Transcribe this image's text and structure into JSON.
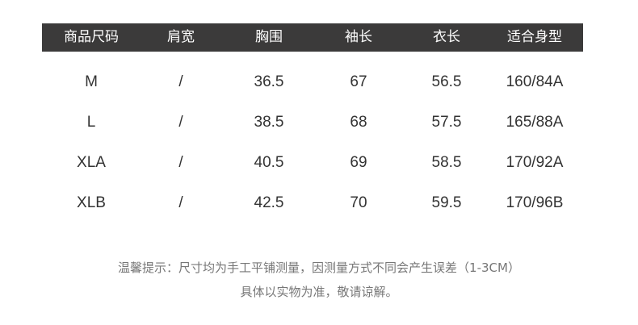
{
  "table": {
    "headers": [
      "商品尺码",
      "肩宽",
      "胸围",
      "袖长",
      "衣长",
      "适合身型"
    ],
    "rows": [
      [
        "M",
        "/",
        "36.5",
        "67",
        "56.5",
        "160/84A"
      ],
      [
        "L",
        "/",
        "38.5",
        "68",
        "57.5",
        "165/88A"
      ],
      [
        "XLA",
        "/",
        "40.5",
        "69",
        "58.5",
        "170/92A"
      ],
      [
        "XLB",
        "/",
        "42.5",
        "70",
        "59.5",
        "170/96B"
      ]
    ]
  },
  "notes": {
    "line1": "温馨提示：尺寸均为手工平铺测量，因测量方式不同会产生误差（1-3CM）",
    "line2": "具体以实物为准，敬请谅解。"
  },
  "colors": {
    "header_bg": "#3b3a3a",
    "header_text": "#ffffff",
    "body_text": "#333333",
    "note_text": "#777777"
  }
}
